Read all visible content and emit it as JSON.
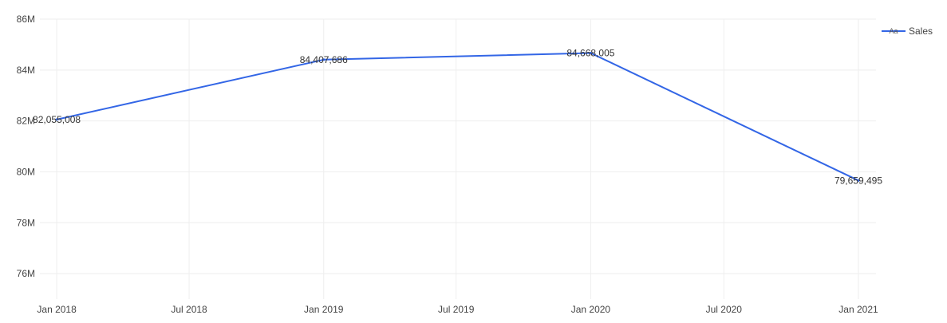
{
  "chart_data": {
    "type": "line",
    "title": "",
    "xlabel": "",
    "ylabel": "",
    "x": [
      "2018-01-01",
      "2019-01-01",
      "2020-01-01",
      "2021-01-01"
    ],
    "series": [
      {
        "name": "Sales",
        "values": [
          82055008,
          84407686,
          84668005,
          79659495
        ],
        "data_labels": [
          "82,055,008",
          "84,407,686",
          "84,668,005",
          "79,659,495"
        ],
        "color": "#3366e6"
      }
    ],
    "x_ticks": [
      {
        "value": "2018-01-01",
        "label": "Jan 2018"
      },
      {
        "value": "2018-07-01",
        "label": "Jul 2018"
      },
      {
        "value": "2019-01-01",
        "label": "Jan 2019"
      },
      {
        "value": "2019-07-01",
        "label": "Jul 2019"
      },
      {
        "value": "2020-01-01",
        "label": "Jan 2020"
      },
      {
        "value": "2020-07-01",
        "label": "Jul 2020"
      },
      {
        "value": "2021-01-01",
        "label": "Jan 2021"
      }
    ],
    "y_ticks": [
      {
        "value": 76000000,
        "label": "76M"
      },
      {
        "value": 78000000,
        "label": "78M"
      },
      {
        "value": 80000000,
        "label": "80M"
      },
      {
        "value": 82000000,
        "label": "82M"
      },
      {
        "value": 84000000,
        "label": "84M"
      },
      {
        "value": 86000000,
        "label": "86M"
      }
    ],
    "xlim": [
      "2017-12-09",
      "2021-01-25"
    ],
    "ylim": [
      75000000,
      86000000
    ],
    "grid": true,
    "legend": {
      "position": "top-right",
      "symbol_text": "Aa"
    },
    "colors": {
      "grid": "#eeeeee",
      "axis_text": "#444444",
      "label_text": "#333333"
    }
  }
}
